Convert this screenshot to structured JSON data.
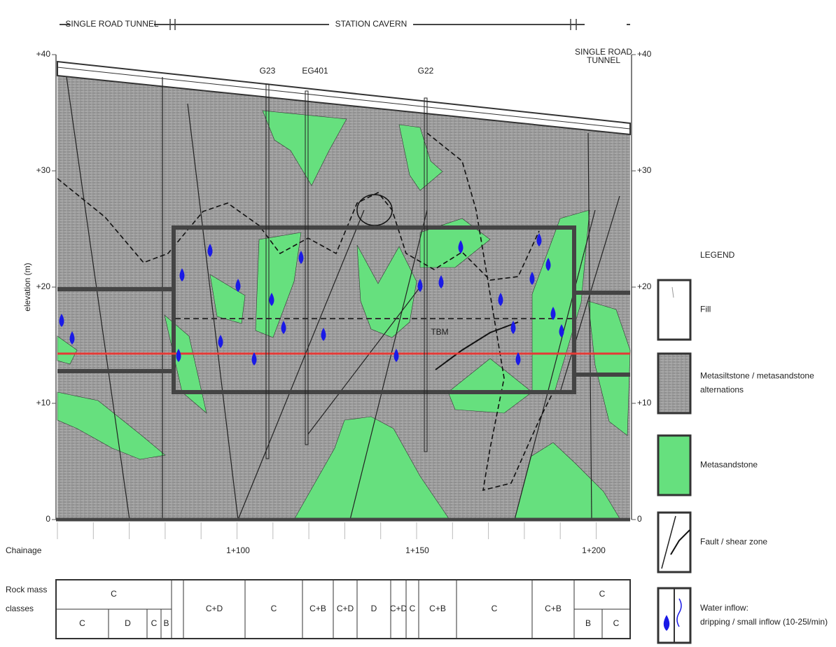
{
  "header": {
    "left": "SINGLE ROAD TUNNEL",
    "center": "STATION CAVERN",
    "right": [
      "SINGLE ROAD",
      "TUNNEL"
    ]
  },
  "elevation": {
    "label": "elevation (m)",
    "left_ticks": [
      "+40",
      "+30",
      "+20",
      "+10",
      "0"
    ],
    "right_ticks": [
      "+40",
      "+30",
      "+20",
      "+10",
      "0"
    ]
  },
  "boreholes": [
    "G23",
    "EG401",
    "G22"
  ],
  "annotation": "TBM",
  "chainage": {
    "label": "Chainage",
    "marks": [
      "1+100",
      "1+150",
      "1+200"
    ]
  },
  "rock_mass": {
    "label": [
      "Rock mass",
      "classes"
    ],
    "cells": [
      "C",
      "C",
      "D",
      "C",
      "B",
      "C+D",
      "C",
      "C+B",
      "C+D",
      "D",
      "C+D",
      "C",
      "C+B",
      "C",
      "C+B",
      "C",
      "B",
      "C"
    ]
  },
  "legend": {
    "title": "LEGEND",
    "items": [
      [
        "Fill"
      ],
      [
        "Metasiltstone / metasandstone",
        "alternations"
      ],
      [
        "Metasandstone"
      ],
      [
        "Fault / shear zone"
      ],
      [
        "Water inflow:",
        "dripping / small inflow (10-25l/min)"
      ]
    ]
  }
}
